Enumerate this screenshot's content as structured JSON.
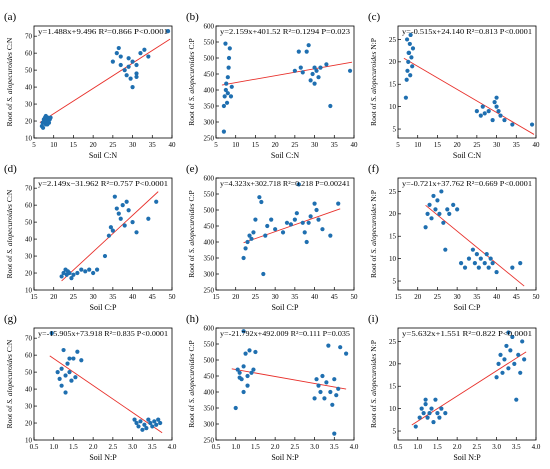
{
  "colors": {
    "point": "#1f6fb0",
    "fit_line": "#e8302b",
    "axis": "#000000"
  },
  "chart_data": [
    {
      "type": "scatter",
      "label": "(a)",
      "equation": "y=1.488x+9.496 R²=0.866 P<0.0001",
      "xlabel": "Soil C:N",
      "ylabel": "Root of S. alopecuroides C:N",
      "xlim": [
        5,
        40
      ],
      "ylim": [
        10,
        76
      ],
      "xticks": [
        5,
        10,
        15,
        20,
        25,
        30,
        35,
        40
      ],
      "yticks": [
        10,
        20,
        30,
        40,
        50,
        60,
        70
      ],
      "fit": {
        "slope": 1.488,
        "intercept": 9.496,
        "x_range": [
          6.5,
          39.5
        ]
      },
      "points": [
        [
          7,
          17
        ],
        [
          7.2,
          19
        ],
        [
          7.5,
          21
        ],
        [
          7.8,
          22
        ],
        [
          8,
          18
        ],
        [
          8.2,
          20
        ],
        [
          8.5,
          22
        ],
        [
          8.8,
          19
        ],
        [
          9,
          21
        ],
        [
          7.3,
          16
        ],
        [
          8,
          23
        ],
        [
          9.2,
          22
        ],
        [
          7.6,
          20
        ],
        [
          8.4,
          18
        ],
        [
          25,
          55
        ],
        [
          26,
          60
        ],
        [
          26.5,
          63
        ],
        [
          27,
          58
        ],
        [
          28,
          50
        ],
        [
          28.5,
          47
        ],
        [
          29,
          52
        ],
        [
          29.5,
          45
        ],
        [
          30,
          55
        ],
        [
          30,
          40
        ],
        [
          31,
          48
        ],
        [
          31,
          53
        ],
        [
          32,
          60
        ],
        [
          33,
          62
        ],
        [
          27,
          53
        ],
        [
          29,
          57
        ],
        [
          31,
          46
        ],
        [
          34,
          58
        ],
        [
          39,
          73
        ]
      ]
    },
    {
      "type": "scatter",
      "label": "(b)",
      "equation": "y=2.159x+401.52 R²=0.1294 P=0.023",
      "xlabel": "Soil C:N",
      "ylabel": "Root of S. alopecuroides C:P",
      "xlim": [
        5,
        40
      ],
      "ylim": [
        250,
        600
      ],
      "xticks": [
        5,
        10,
        15,
        20,
        25,
        30,
        35,
        40
      ],
      "yticks": [
        250,
        300,
        350,
        400,
        450,
        500,
        550,
        600
      ],
      "fit": {
        "slope": 2.159,
        "intercept": 401.52,
        "x_range": [
          6.5,
          39.5
        ]
      },
      "points": [
        [
          7,
          270
        ],
        [
          7,
          350
        ],
        [
          7.2,
          380
        ],
        [
          7.5,
          400
        ],
        [
          7.6,
          420
        ],
        [
          7.8,
          360
        ],
        [
          8,
          440
        ],
        [
          8.2,
          470
        ],
        [
          8.3,
          500
        ],
        [
          8.5,
          530
        ],
        [
          8.8,
          380
        ],
        [
          9,
          410
        ],
        [
          7.4,
          545
        ],
        [
          8,
          390
        ],
        [
          25,
          460
        ],
        [
          26,
          520
        ],
        [
          26.5,
          470
        ],
        [
          27,
          455
        ],
        [
          28,
          520
        ],
        [
          28.5,
          540
        ],
        [
          29,
          430
        ],
        [
          29.5,
          450
        ],
        [
          30,
          470
        ],
        [
          30,
          420
        ],
        [
          30.5,
          460
        ],
        [
          31,
          440
        ],
        [
          31.5,
          470
        ],
        [
          33,
          480
        ],
        [
          34,
          350
        ],
        [
          39,
          460
        ]
      ]
    },
    {
      "type": "scatter",
      "label": "(c)",
      "equation": "y=-0.515x+24.140 R²=0.813 P<0.0001",
      "xlabel": "Soil C:N",
      "ylabel": "Root of S. alopecuroides N:P",
      "xlim": [
        5,
        40
      ],
      "ylim": [
        3,
        28
      ],
      "xticks": [
        5,
        10,
        15,
        20,
        25,
        30,
        35,
        40
      ],
      "yticks": [
        5,
        10,
        15,
        20,
        25
      ],
      "fit": {
        "slope": -0.515,
        "intercept": 24.14,
        "x_range": [
          6.5,
          39.5
        ]
      },
      "points": [
        [
          7,
          12
        ],
        [
          7.2,
          16
        ],
        [
          7.4,
          18
        ],
        [
          7.6,
          20
        ],
        [
          7.8,
          22
        ],
        [
          8,
          24
        ],
        [
          8.2,
          26
        ],
        [
          8.4,
          21
        ],
        [
          8.6,
          19
        ],
        [
          8.8,
          23
        ],
        [
          7.3,
          25
        ],
        [
          8.1,
          17
        ],
        [
          7.7,
          22
        ],
        [
          25,
          9
        ],
        [
          26,
          8
        ],
        [
          26.5,
          10
        ],
        [
          27,
          8.5
        ],
        [
          28,
          9
        ],
        [
          29,
          7
        ],
        [
          29.5,
          11
        ],
        [
          30,
          10
        ],
        [
          30,
          12
        ],
        [
          30.5,
          9
        ],
        [
          31,
          8
        ],
        [
          32,
          7
        ],
        [
          34,
          6
        ],
        [
          39,
          6
        ]
      ]
    },
    {
      "type": "scatter",
      "label": "(d)",
      "equation": "y=2.149x−31.962 R²=0.757 P<0.0001",
      "xlabel": "Soil C:P",
      "ylabel": "Root of S. alopecuroides C:N",
      "xlim": [
        15,
        50
      ],
      "ylim": [
        10,
        76
      ],
      "xticks": [
        15,
        20,
        25,
        30,
        35,
        40,
        45,
        50
      ],
      "yticks": [
        10,
        20,
        30,
        40,
        50,
        60,
        70
      ],
      "fit": {
        "slope": 2.149,
        "intercept": -31.962,
        "x_range": [
          22,
          46.5
        ]
      },
      "points": [
        [
          22,
          18
        ],
        [
          22.5,
          20
        ],
        [
          23,
          22
        ],
        [
          23.3,
          19
        ],
        [
          23.6,
          21
        ],
        [
          24,
          20
        ],
        [
          24.5,
          17
        ],
        [
          25,
          19
        ],
        [
          26,
          20
        ],
        [
          27,
          22
        ],
        [
          28,
          21
        ],
        [
          29,
          22
        ],
        [
          30,
          20
        ],
        [
          31,
          22
        ],
        [
          33,
          30
        ],
        [
          34,
          42
        ],
        [
          34.5,
          47
        ],
        [
          35,
          45
        ],
        [
          35.5,
          65
        ],
        [
          36,
          58
        ],
        [
          36.5,
          55
        ],
        [
          37,
          52
        ],
        [
          37.5,
          60
        ],
        [
          38,
          48
        ],
        [
          38.5,
          62
        ],
        [
          39,
          57
        ],
        [
          40,
          50
        ],
        [
          41,
          44
        ],
        [
          44,
          52
        ],
        [
          46,
          62
        ]
      ]
    },
    {
      "type": "scatter",
      "label": "(e)",
      "equation": "y=4.323x+302.718 R²=0.218 P=0.00241",
      "xlabel": "Soil C:P",
      "ylabel": "Root of S. alopecuroides C:P",
      "xlim": [
        15,
        50
      ],
      "ylim": [
        250,
        600
      ],
      "xticks": [
        15,
        20,
        25,
        30,
        35,
        40,
        45,
        50
      ],
      "yticks": [
        250,
        300,
        350,
        400,
        450,
        500,
        550,
        600
      ],
      "fit": {
        "slope": 4.323,
        "intercept": 302.718,
        "x_range": [
          22,
          46.5
        ]
      },
      "points": [
        [
          22,
          350
        ],
        [
          22.5,
          380
        ],
        [
          23,
          400
        ],
        [
          23.5,
          420
        ],
        [
          24,
          410
        ],
        [
          24.5,
          430
        ],
        [
          25,
          470
        ],
        [
          26,
          540
        ],
        [
          26.5,
          525
        ],
        [
          27,
          300
        ],
        [
          27.5,
          420
        ],
        [
          28,
          450
        ],
        [
          29,
          470
        ],
        [
          30,
          440
        ],
        [
          32,
          430
        ],
        [
          33,
          460
        ],
        [
          34,
          455
        ],
        [
          35,
          470
        ],
        [
          35.5,
          490
        ],
        [
          36,
          580
        ],
        [
          37,
          460
        ],
        [
          37.5,
          430
        ],
        [
          38,
          400
        ],
        [
          38.5,
          460
        ],
        [
          39,
          480
        ],
        [
          40,
          520
        ],
        [
          40.5,
          500
        ],
        [
          41,
          470
        ],
        [
          42,
          440
        ],
        [
          44,
          420
        ],
        [
          46,
          520
        ]
      ]
    },
    {
      "type": "scatter",
      "label": "(f)",
      "equation": "y=-0.721x+37.762 R²=0.669 P<0.0001",
      "xlabel": "Soil C:P",
      "ylabel": "Root of S. alopecuroides N:P",
      "xlim": [
        15,
        50
      ],
      "ylim": [
        3,
        28
      ],
      "xticks": [
        15,
        20,
        25,
        30,
        35,
        40,
        45,
        50
      ],
      "yticks": [
        5,
        10,
        15,
        20,
        25
      ],
      "fit": {
        "slope": -0.721,
        "intercept": 37.762,
        "x_range": [
          22,
          47
        ]
      },
      "points": [
        [
          22,
          17
        ],
        [
          22.5,
          20
        ],
        [
          23,
          22
        ],
        [
          23.5,
          19
        ],
        [
          24,
          24
        ],
        [
          24.5,
          21
        ],
        [
          25,
          23
        ],
        [
          25.5,
          20
        ],
        [
          26,
          25
        ],
        [
          26.5,
          18
        ],
        [
          27,
          12
        ],
        [
          27.5,
          21
        ],
        [
          28,
          20
        ],
        [
          29,
          22
        ],
        [
          30,
          21
        ],
        [
          31,
          9
        ],
        [
          32,
          8
        ],
        [
          33,
          10
        ],
        [
          34,
          12
        ],
        [
          34.5,
          9
        ],
        [
          35,
          11
        ],
        [
          35.5,
          8
        ],
        [
          36,
          10
        ],
        [
          37,
          9
        ],
        [
          37.5,
          11
        ],
        [
          38,
          8
        ],
        [
          38.5,
          10
        ],
        [
          39,
          9
        ],
        [
          40,
          7
        ],
        [
          44,
          8
        ],
        [
          46,
          9
        ]
      ]
    },
    {
      "type": "scatter",
      "label": "(g)",
      "equation": "y=-15.905x+73.918 R²=0.835 P<0.0001",
      "xlabel": "Soil N:P",
      "ylabel": "Root of S. alopecuroides C:N",
      "xlim": [
        0.5,
        4.0
      ],
      "ylim": [
        10,
        76
      ],
      "xticks": [
        0.5,
        1.0,
        1.5,
        2.0,
        2.5,
        3.0,
        3.5,
        4.0
      ],
      "yticks": [
        10,
        20,
        30,
        40,
        50,
        60,
        70
      ],
      "fit": {
        "slope": -15.905,
        "intercept": 73.918,
        "x_range": [
          0.9,
          3.75
        ]
      },
      "points": [
        [
          0.95,
          73
        ],
        [
          1.1,
          50
        ],
        [
          1.15,
          46
        ],
        [
          1.2,
          52
        ],
        [
          1.25,
          63
        ],
        [
          1.3,
          48
        ],
        [
          1.35,
          55
        ],
        [
          1.4,
          50
        ],
        [
          1.45,
          45
        ],
        [
          1.5,
          58
        ],
        [
          1.55,
          47
        ],
        [
          1.6,
          62
        ],
        [
          1.7,
          57
        ],
        [
          1.2,
          42
        ],
        [
          1.3,
          38
        ],
        [
          1.4,
          58
        ],
        [
          3.05,
          22
        ],
        [
          3.1,
          20
        ],
        [
          3.15,
          18
        ],
        [
          3.2,
          21
        ],
        [
          3.3,
          19
        ],
        [
          3.35,
          17
        ],
        [
          3.4,
          22
        ],
        [
          3.45,
          20
        ],
        [
          3.5,
          18
        ],
        [
          3.55,
          21
        ],
        [
          3.6,
          19
        ],
        [
          3.65,
          22
        ],
        [
          3.7,
          20
        ],
        [
          3.25,
          16
        ]
      ]
    },
    {
      "type": "scatter",
      "label": "(h)",
      "equation": "y=-21.792x+492.009 R²=0.111 P=0.035",
      "xlabel": "Soil N:P",
      "ylabel": "Root of S. alopecuroides C:P",
      "xlim": [
        0.5,
        4.0
      ],
      "ylim": [
        250,
        600
      ],
      "xticks": [
        0.5,
        1.0,
        1.5,
        2.0,
        2.5,
        3.0,
        3.5,
        4.0
      ],
      "yticks": [
        250,
        300,
        350,
        400,
        450,
        500,
        550,
        600
      ],
      "fit": {
        "slope": -21.792,
        "intercept": 492.009,
        "x_range": [
          0.9,
          3.8
        ]
      },
      "points": [
        [
          1.0,
          350
        ],
        [
          1.05,
          470
        ],
        [
          1.1,
          460
        ],
        [
          1.15,
          440
        ],
        [
          1.2,
          480
        ],
        [
          1.2,
          590
        ],
        [
          1.25,
          520
        ],
        [
          1.3,
          450
        ],
        [
          1.3,
          420
        ],
        [
          1.35,
          530
        ],
        [
          1.4,
          460
        ],
        [
          1.45,
          470
        ],
        [
          1.5,
          525
        ],
        [
          1.2,
          400
        ],
        [
          1.1,
          445
        ],
        [
          3.0,
          380
        ],
        [
          3.05,
          440
        ],
        [
          3.1,
          420
        ],
        [
          3.15,
          400
        ],
        [
          3.2,
          450
        ],
        [
          3.25,
          380
        ],
        [
          3.3,
          430
        ],
        [
          3.35,
          545
        ],
        [
          3.4,
          400
        ],
        [
          3.45,
          360
        ],
        [
          3.5,
          440
        ],
        [
          3.5,
          270
        ],
        [
          3.55,
          390
        ],
        [
          3.6,
          410
        ],
        [
          3.65,
          540
        ],
        [
          3.8,
          520
        ]
      ]
    },
    {
      "type": "scatter",
      "label": "(i)",
      "equation": "y=5.632x+1.551 R²=0.822 P<0.0001",
      "xlabel": "Soil N:P",
      "ylabel": "Root of S. alopecuroides N:P",
      "xlim": [
        0.5,
        4.0
      ],
      "ylim": [
        3,
        28
      ],
      "xticks": [
        0.5,
        1.0,
        1.5,
        2.0,
        2.5,
        3.0,
        3.5,
        4.0
      ],
      "yticks": [
        5,
        10,
        15,
        20,
        25
      ],
      "fit": {
        "slope": 5.632,
        "intercept": 1.551,
        "x_range": [
          0.85,
          3.75
        ]
      },
      "points": [
        [
          0.95,
          6
        ],
        [
          1.05,
          8
        ],
        [
          1.1,
          10
        ],
        [
          1.15,
          9
        ],
        [
          1.2,
          11
        ],
        [
          1.25,
          8
        ],
        [
          1.3,
          9
        ],
        [
          1.35,
          10
        ],
        [
          1.4,
          7
        ],
        [
          1.45,
          12
        ],
        [
          1.5,
          9
        ],
        [
          1.55,
          8
        ],
        [
          1.6,
          10
        ],
        [
          1.2,
          12
        ],
        [
          1.7,
          9
        ],
        [
          3.0,
          17
        ],
        [
          3.05,
          20
        ],
        [
          3.1,
          22
        ],
        [
          3.15,
          18
        ],
        [
          3.2,
          21
        ],
        [
          3.25,
          24
        ],
        [
          3.3,
          19
        ],
        [
          3.35,
          23
        ],
        [
          3.4,
          26
        ],
        [
          3.45,
          20
        ],
        [
          3.5,
          12
        ],
        [
          3.55,
          22
        ],
        [
          3.6,
          18
        ],
        [
          3.65,
          25
        ],
        [
          3.7,
          21
        ],
        [
          3.3,
          27
        ]
      ]
    }
  ]
}
